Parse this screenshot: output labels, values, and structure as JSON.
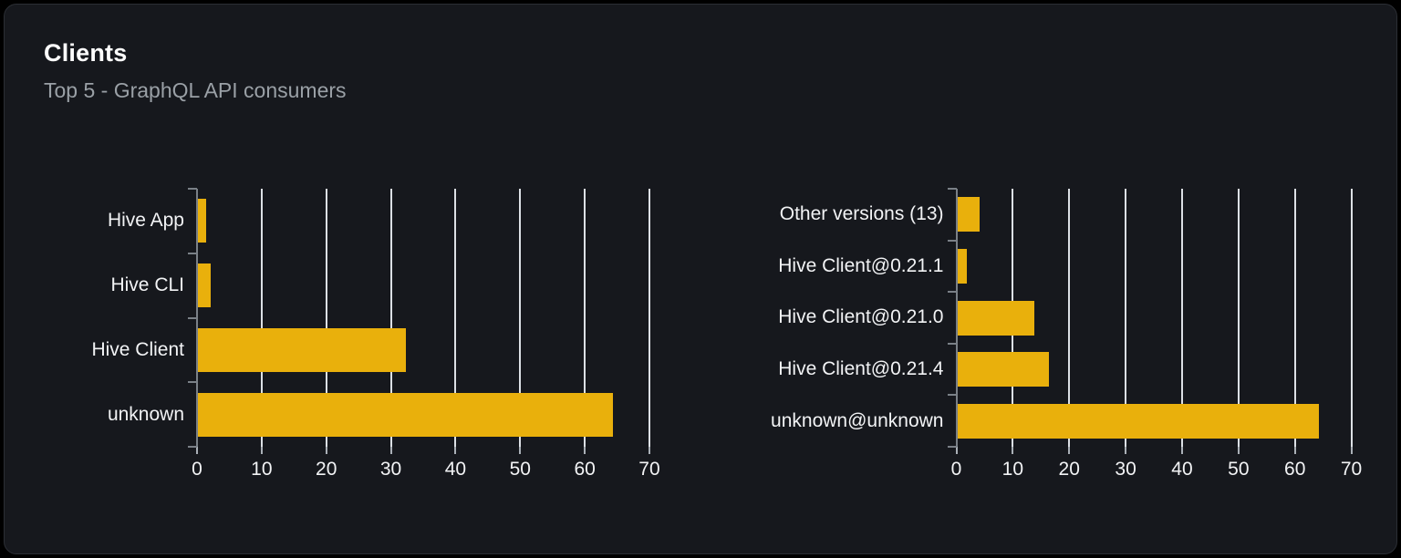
{
  "card": {
    "title": "Clients",
    "subtitle": "Top 5 - GraphQL API consumers"
  },
  "colors": {
    "card_background": "#16181d",
    "card_border": "#2b2e34",
    "bar": "#e9b00c",
    "gridline": "#dce0e5",
    "axis": "#7a8087",
    "label_text": "#f2f3f5",
    "subtitle_text": "#9aa0a6"
  },
  "chart_data": [
    {
      "type": "bar",
      "orientation": "horizontal",
      "title": "",
      "categories": [
        "Hive App",
        "Hive CLI",
        "Hive Client",
        "unknown"
      ],
      "values": [
        1.4,
        2.1,
        32.3,
        64.3
      ],
      "xticks": [
        0,
        10,
        20,
        30,
        40,
        50,
        60,
        70
      ],
      "xlim": [
        0,
        71.2
      ],
      "grid": true,
      "legend": "none",
      "bar_color": "#e9b00c"
    },
    {
      "type": "bar",
      "orientation": "horizontal",
      "title": "",
      "categories": [
        "Other versions (13)",
        "Hive Client@0.21.1",
        "Hive Client@0.21.0",
        "Hive Client@0.21.4",
        "unknown@unknown"
      ],
      "values": [
        4.2,
        1.9,
        13.9,
        16.4,
        64.2
      ],
      "xticks": [
        0,
        10,
        20,
        30,
        40,
        50,
        60,
        70
      ],
      "xlim": [
        0,
        71.2
      ],
      "grid": true,
      "legend": "none",
      "bar_color": "#e9b00c"
    }
  ]
}
